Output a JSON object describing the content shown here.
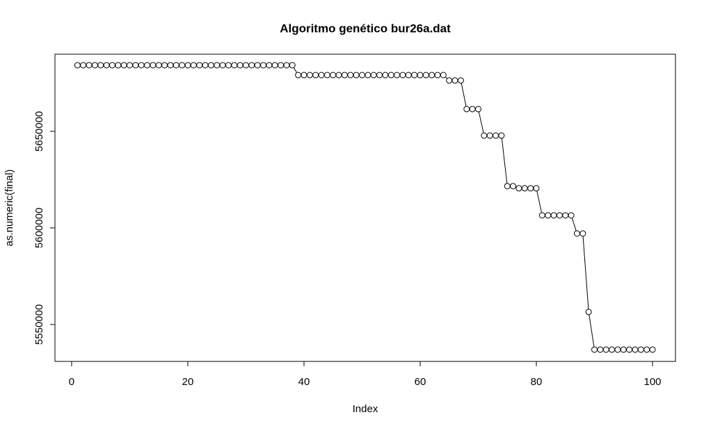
{
  "chart_data": {
    "type": "line",
    "title": "Algoritmo genético bur26a.dat",
    "x_label": "Index",
    "y_label": "as.numeric(final)",
    "x": [
      1,
      2,
      3,
      4,
      5,
      6,
      7,
      8,
      9,
      10,
      11,
      12,
      13,
      14,
      15,
      16,
      17,
      18,
      19,
      20,
      21,
      22,
      23,
      24,
      25,
      26,
      27,
      28,
      29,
      30,
      31,
      32,
      33,
      34,
      35,
      36,
      37,
      38,
      39,
      40,
      41,
      42,
      43,
      44,
      45,
      46,
      47,
      48,
      49,
      50,
      51,
      52,
      53,
      54,
      55,
      56,
      57,
      58,
      59,
      60,
      61,
      62,
      63,
      64,
      65,
      66,
      67,
      68,
      69,
      70,
      71,
      72,
      73,
      74,
      75,
      76,
      77,
      78,
      79,
      80,
      81,
      82,
      83,
      84,
      85,
      86,
      87,
      88,
      89,
      90,
      91,
      92,
      93,
      94,
      95,
      96,
      97,
      98,
      99,
      100
    ],
    "values": [
      5684200,
      5684200,
      5684200,
      5684200,
      5684200,
      5684200,
      5684200,
      5684200,
      5684200,
      5684200,
      5684200,
      5684200,
      5684200,
      5684200,
      5684200,
      5684200,
      5684200,
      5684200,
      5684200,
      5684200,
      5684200,
      5684200,
      5684200,
      5684200,
      5684200,
      5684200,
      5684200,
      5684200,
      5684200,
      5684200,
      5684200,
      5684200,
      5684200,
      5684200,
      5684200,
      5684200,
      5684200,
      5684200,
      5679100,
      5679100,
      5679100,
      5679100,
      5679100,
      5679100,
      5679100,
      5679100,
      5679100,
      5679100,
      5679100,
      5679100,
      5679100,
      5679100,
      5679100,
      5679100,
      5679100,
      5679100,
      5679100,
      5679100,
      5679100,
      5679100,
      5679100,
      5679100,
      5679100,
      5679100,
      5676300,
      5676300,
      5676300,
      5661500,
      5661500,
      5661500,
      5647800,
      5647800,
      5647800,
      5647800,
      5621600,
      5621600,
      5620500,
      5620500,
      5620500,
      5620500,
      5606500,
      5606500,
      5606500,
      5606500,
      5606500,
      5606500,
      5597100,
      5597100,
      5556500,
      5537000,
      5537000,
      5537000,
      5537000,
      5537000,
      5537000,
      5537000,
      5537000,
      5537000,
      5537000,
      5537000
    ],
    "color": "#000000",
    "xlim": [
      -2.87,
      103.95
    ],
    "ylim": [
      5530900,
      5689900
    ],
    "xticks": [
      0,
      20,
      40,
      60,
      80,
      100
    ],
    "yticks": [
      5550000,
      5600000,
      5650000
    ]
  }
}
